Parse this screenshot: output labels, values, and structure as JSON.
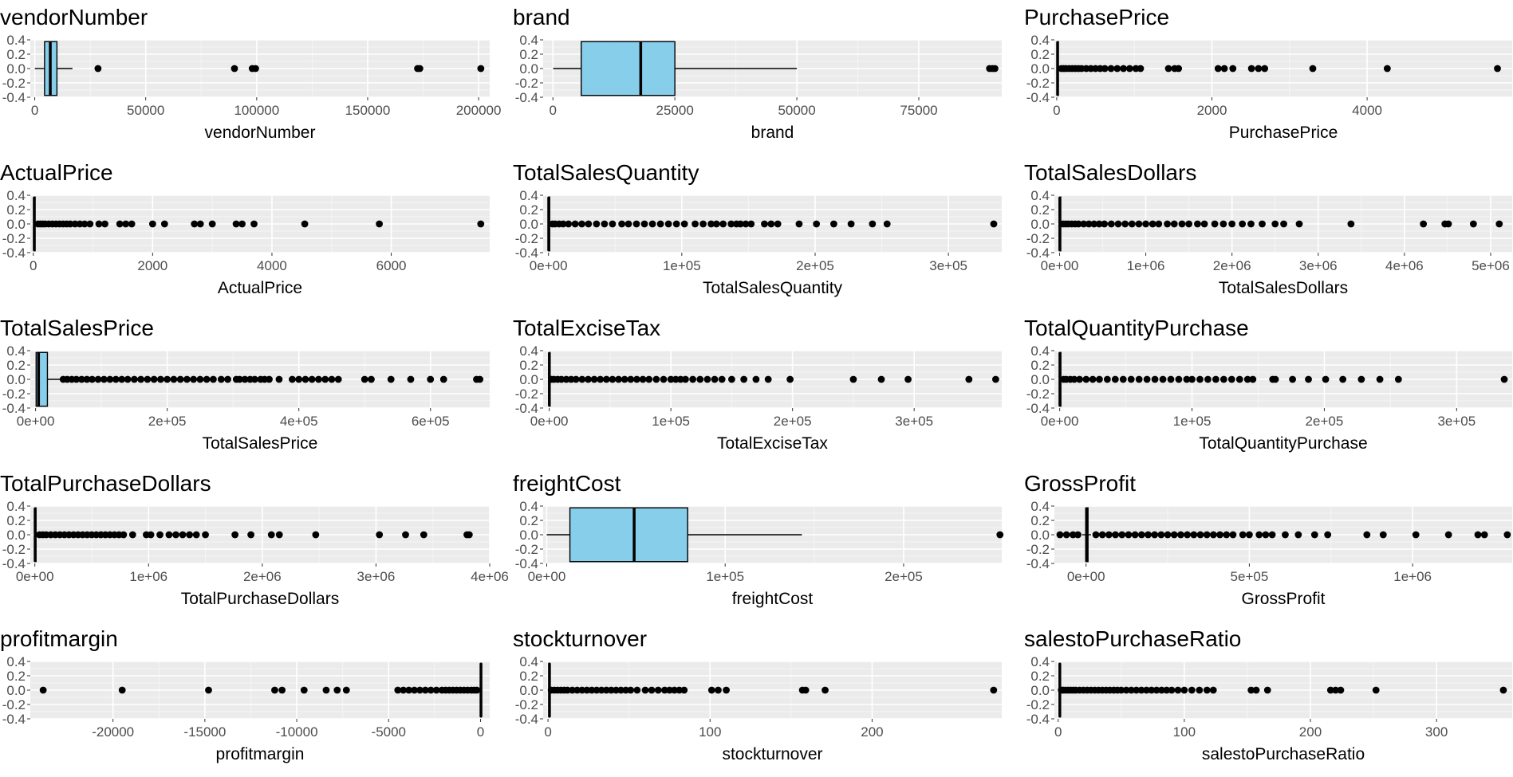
{
  "chart_data": [
    {
      "type": "boxplot",
      "title": "vendorNumber",
      "xlabel": "vendorNumber",
      "xlim": [
        -2000,
        205000
      ],
      "xticks": [
        0,
        50000,
        100000,
        150000,
        200000
      ],
      "xtick_labels": [
        "0",
        "50000",
        "100000",
        "150000",
        "200000"
      ],
      "box": {
        "q1": 4425,
        "median": 7000,
        "q3": 10000,
        "whisker_low": 0,
        "whisker_high": 17000
      },
      "outliers": [
        28500,
        90000,
        98000,
        99500,
        172500,
        173500,
        201000
      ]
    },
    {
      "type": "boxplot",
      "title": "brand",
      "xlabel": "brand",
      "xlim": [
        -2000,
        92000
      ],
      "xticks": [
        0,
        25000,
        50000,
        75000
      ],
      "xtick_labels": [
        "0",
        "25000",
        "50000",
        "75000"
      ],
      "box": {
        "q1": 5800,
        "median": 18000,
        "q3": 25000,
        "whisker_low": 58,
        "whisker_high": 50000
      },
      "outliers": [
        89500,
        90100,
        90600
      ]
    },
    {
      "type": "boxplot",
      "title": "PurchasePrice",
      "xlabel": "PurchasePrice",
      "xlim": [
        -30,
        5870
      ],
      "xticks": [
        0,
        2000,
        4000
      ],
      "xtick_labels": [
        "0",
        "2000",
        "4000"
      ],
      "box": {
        "q1": 6,
        "median": 11,
        "q3": 20,
        "whisker_low": 0,
        "whisker_high": 40
      },
      "outliers": [
        60,
        90,
        120,
        160,
        200,
        240,
        280,
        320,
        380,
        440,
        500,
        560,
        620,
        700,
        780,
        860,
        940,
        1020,
        1080,
        1440,
        1520,
        1570,
        2080,
        2160,
        2270,
        2510,
        2600,
        2680,
        3300,
        4260,
        5680
      ]
    },
    {
      "type": "boxplot",
      "title": "ActualPrice",
      "xlabel": "ActualPrice",
      "xlim": [
        -50,
        7650
      ],
      "xticks": [
        0,
        2000,
        4000,
        6000
      ],
      "xtick_labels": [
        "0",
        "2000",
        "4000",
        "6000"
      ],
      "box": {
        "q1": 10,
        "median": 16,
        "q3": 30,
        "whisker_low": 0,
        "whisker_high": 60
      },
      "outliers": [
        80,
        120,
        160,
        200,
        260,
        320,
        380,
        440,
        500,
        560,
        620,
        700,
        780,
        860,
        950,
        1100,
        1200,
        1450,
        1550,
        1650,
        2000,
        2200,
        2700,
        2800,
        3000,
        3400,
        3500,
        3700,
        4550,
        5800,
        7500
      ]
    },
    {
      "type": "boxplot",
      "title": "TotalSalesQuantity",
      "xlabel": "TotalSalesQuantity",
      "xlim": [
        -4000,
        340000
      ],
      "xticks": [
        0,
        100000,
        200000,
        300000
      ],
      "xtick_labels": [
        "0e+00",
        "1e+05",
        "2e+05",
        "3e+05"
      ],
      "box": {
        "q1": 30,
        "median": 180,
        "q3": 900,
        "whisker_low": 0,
        "whisker_high": 2200
      },
      "outliers": [
        3000,
        5000,
        8000,
        11000,
        15000,
        20000,
        25000,
        30000,
        36000,
        42000,
        48000,
        55000,
        60000,
        66000,
        72000,
        78000,
        84000,
        90000,
        96000,
        102000,
        110000,
        116000,
        122000,
        126000,
        131000,
        137000,
        141000,
        144000,
        148000,
        152000,
        162000,
        167000,
        172000,
        188000,
        201000,
        214000,
        227000,
        243000,
        254000,
        334000
      ]
    },
    {
      "type": "boxplot",
      "title": "TotalSalesDollars",
      "xlabel": "TotalSalesDollars",
      "xlim": [
        -60000,
        5250000
      ],
      "xticks": [
        0,
        1000000,
        2000000,
        3000000,
        4000000,
        5000000
      ],
      "xtick_labels": [
        "0e+00",
        "1e+06",
        "2e+06",
        "3e+06",
        "4e+06",
        "5e+06"
      ],
      "box": {
        "q1": 500,
        "median": 3000,
        "q3": 14000,
        "whisker_low": 0,
        "whisker_high": 30000
      },
      "outliers": [
        40000,
        70000,
        100000,
        140000,
        180000,
        220000,
        280000,
        340000,
        400000,
        460000,
        520000,
        600000,
        680000,
        760000,
        840000,
        920000,
        1000000,
        1080000,
        1150000,
        1250000,
        1330000,
        1420000,
        1500000,
        1600000,
        1680000,
        1800000,
        1900000,
        2000000,
        2120000,
        2220000,
        2350000,
        2500000,
        2600000,
        2780000,
        3380000,
        4220000,
        4470000,
        4510000,
        4800000,
        5100000
      ]
    },
    {
      "type": "boxplot",
      "title": "TotalSalesPrice",
      "xlabel": "TotalSalesPrice",
      "xlim": [
        -8000,
        690000
      ],
      "xticks": [
        0,
        200000,
        400000,
        600000
      ],
      "xtick_labels": [
        "0e+00",
        "2e+05",
        "4e+05",
        "6e+05"
      ],
      "box": {
        "q1": 800,
        "median": 4500,
        "q3": 18000,
        "whisker_low": 0,
        "whisker_high": 40000
      },
      "outliers": [
        42000,
        48000,
        55000,
        62000,
        70000,
        78000,
        86000,
        95000,
        104000,
        113000,
        122000,
        131000,
        140000,
        150000,
        160000,
        170000,
        180000,
        190000,
        200000,
        210000,
        220000,
        230000,
        240000,
        250000,
        260000,
        270000,
        282000,
        292000,
        305000,
        310000,
        318000,
        326000,
        333000,
        342000,
        348000,
        355000,
        370000,
        390000,
        400000,
        410000,
        420000,
        430000,
        440000,
        450000,
        460000,
        500000,
        510000,
        540000,
        570000,
        600000,
        620000,
        670000,
        675000
      ]
    },
    {
      "type": "boxplot",
      "title": "TotalExciseTax",
      "xlabel": "TotalExciseTax",
      "xlim": [
        -5000,
        372000
      ],
      "xticks": [
        0,
        100000,
        200000,
        300000
      ],
      "xtick_labels": [
        "0e+00",
        "1e+05",
        "2e+05",
        "3e+05"
      ],
      "box": {
        "q1": 20,
        "median": 100,
        "q3": 600,
        "whisker_low": 0,
        "whisker_high": 1500
      },
      "outliers": [
        2000,
        4000,
        7000,
        10000,
        14000,
        18000,
        22000,
        27000,
        32000,
        37000,
        42000,
        47000,
        52000,
        57000,
        62000,
        67000,
        72000,
        77000,
        82000,
        88000,
        94000,
        100000,
        104000,
        108000,
        112000,
        118000,
        124000,
        130000,
        136000,
        142000,
        150000,
        160000,
        170000,
        180000,
        198000,
        250000,
        273000,
        295000,
        345000,
        367000
      ]
    },
    {
      "type": "boxplot",
      "title": "TotalQuantityPurchase",
      "xlabel": "TotalQuantityPurchase",
      "xlim": [
        -4000,
        342000
      ],
      "xticks": [
        0,
        100000,
        200000,
        300000
      ],
      "xtick_labels": [
        "0e+00",
        "1e+05",
        "2e+05",
        "3e+05"
      ],
      "box": {
        "q1": 30,
        "median": 180,
        "q3": 900,
        "whisker_low": 0,
        "whisker_high": 2200
      },
      "outliers": [
        3000,
        5000,
        8000,
        11000,
        15000,
        20000,
        25000,
        30000,
        36000,
        42000,
        48000,
        54000,
        60000,
        66000,
        72000,
        78000,
        84000,
        90000,
        96000,
        100000,
        106000,
        112000,
        118000,
        124000,
        130000,
        136000,
        142000,
        146000,
        161000,
        163000,
        176000,
        188000,
        201000,
        214000,
        228000,
        242000,
        256000,
        336000
      ]
    },
    {
      "type": "boxplot",
      "title": "TotalPurchaseDollars",
      "xlabel": "TotalPurchaseDollars",
      "xlim": [
        -40000,
        4000000
      ],
      "xticks": [
        0,
        1000000,
        2000000,
        3000000,
        4000000
      ],
      "xtick_labels": [
        "0e+00",
        "1e+06",
        "2e+06",
        "3e+06",
        "4e+06"
      ],
      "box": {
        "q1": 400,
        "median": 2500,
        "q3": 10000,
        "whisker_low": 0,
        "whisker_high": 25000
      },
      "outliers": [
        40000,
        70000,
        100000,
        140000,
        180000,
        220000,
        260000,
        300000,
        340000,
        380000,
        420000,
        460000,
        500000,
        540000,
        580000,
        620000,
        660000,
        700000,
        740000,
        780000,
        860000,
        980000,
        1020000,
        1100000,
        1180000,
        1240000,
        1300000,
        1360000,
        1420000,
        1500000,
        1760000,
        1900000,
        2080000,
        2150000,
        2470000,
        3030000,
        3260000,
        3420000,
        3800000,
        3820000
      ]
    },
    {
      "type": "boxplot",
      "title": "freightCost",
      "xlabel": "freightCost",
      "xlim": [
        -2000,
        255000
      ],
      "xticks": [
        0,
        100000,
        200000
      ],
      "xtick_labels": [
        "0e+00",
        "1e+05",
        "2e+05"
      ],
      "box": {
        "q1": 13000,
        "median": 49000,
        "q3": 79000,
        "whisker_low": 0,
        "whisker_high": 143000
      },
      "outliers": [
        254000
      ]
    },
    {
      "type": "boxplot",
      "title": "GrossProfit",
      "xlabel": "GrossProfit",
      "xlim": [
        -97000,
        1305000
      ],
      "xticks": [
        0,
        500000,
        1000000
      ],
      "xtick_labels": [
        "0e+00",
        "5e+05",
        "1e+06"
      ],
      "box": {
        "q1": -500,
        "median": 1500,
        "q3": 6000,
        "whisker_low": -12000,
        "whisker_high": 15000
      },
      "outliers": [
        -80000,
        -60000,
        -40000,
        -25000,
        30000,
        50000,
        70000,
        90000,
        110000,
        130000,
        150000,
        170000,
        190000,
        210000,
        230000,
        250000,
        270000,
        290000,
        310000,
        330000,
        350000,
        370000,
        390000,
        410000,
        430000,
        450000,
        480000,
        500000,
        530000,
        550000,
        570000,
        610000,
        650000,
        700000,
        740000,
        860000,
        910000,
        1010000,
        1110000,
        1200000,
        1220000,
        1290000
      ]
    },
    {
      "type": "boxplot",
      "title": "profitmargin",
      "xlabel": "profitmargin",
      "xlim": [
        -24500,
        500
      ],
      "xticks": [
        -20000,
        -15000,
        -10000,
        -5000,
        0
      ],
      "xtick_labels": [
        "-20000",
        "-15000",
        "-10000",
        "-5000",
        "0"
      ],
      "box": {
        "q1": 8,
        "median": 25,
        "q3": 38,
        "whisker_low": -35,
        "whisker_high": 80
      },
      "outliers": [
        -23800,
        -19500,
        -14800,
        -11200,
        -10800,
        -9600,
        -8400,
        -7800,
        -7300,
        -4500,
        -4200,
        -3900,
        -3600,
        -3300,
        -3000,
        -2700,
        -2400,
        -2100,
        -1900,
        -1700,
        -1500,
        -1300,
        -1100,
        -900,
        -700,
        -500,
        -350,
        -200
      ]
    },
    {
      "type": "boxplot",
      "title": "stockturnover",
      "xlabel": "stockturnover",
      "xlim": [
        -3000,
        280000
      ],
      "xticks": [
        0,
        100000,
        200000
      ],
      "xtick_labels": [
        "0",
        "100",
        "200"
      ],
      "box": {
        "q1": 500,
        "median": 900,
        "q3": 1100,
        "whisker_low": 0,
        "whisker_high": 1900
      },
      "outliers": [
        2000,
        4000,
        6000,
        8000,
        10000,
        12000,
        15000,
        18000,
        21000,
        24000,
        27000,
        30000,
        33000,
        36000,
        39000,
        42000,
        45000,
        48000,
        51000,
        55000,
        60000,
        64000,
        68000,
        72000,
        75000,
        78000,
        81000,
        84000,
        101000,
        105000,
        110000,
        157000,
        159000,
        171000,
        275000
      ]
    },
    {
      "type": "boxplot",
      "title": "salestoPurchaseRatio",
      "xlabel": "salestoPurchaseRatio",
      "xlim": [
        -3000,
        360000
      ],
      "xticks": [
        0,
        100000,
        200000,
        300000
      ],
      "xtick_labels": [
        "0",
        "100",
        "200",
        "300"
      ],
      "box": {
        "q1": 1100,
        "median": 1300,
        "q3": 1500,
        "whisker_low": 500,
        "whisker_high": 2100
      },
      "outliers": [
        2500,
        4000,
        6000,
        8000,
        10000,
        12000,
        14000,
        17000,
        20000,
        23000,
        26000,
        29000,
        32000,
        35000,
        38000,
        41000,
        44000,
        47000,
        50000,
        54000,
        58000,
        62000,
        66000,
        70000,
        74000,
        78000,
        82000,
        86000,
        90000,
        95000,
        100000,
        106000,
        112000,
        118000,
        123000,
        153000,
        157000,
        166000,
        216000,
        220000,
        224000,
        252000,
        353000
      ]
    }
  ],
  "y_axis": {
    "ticks": [
      0.4,
      0.2,
      0.0,
      -0.2,
      -0.4
    ],
    "tick_labels": [
      "0.4",
      "0.2",
      "0.0",
      "-0.2",
      "-0.4"
    ],
    "lim": [
      -0.4,
      0.4
    ]
  },
  "style": {
    "panel_bg": "#ebebeb",
    "grid_major": "#ffffff",
    "box_fill": "#87ceeb",
    "stroke": "#000000",
    "tick_text": "#4d4d4d"
  }
}
